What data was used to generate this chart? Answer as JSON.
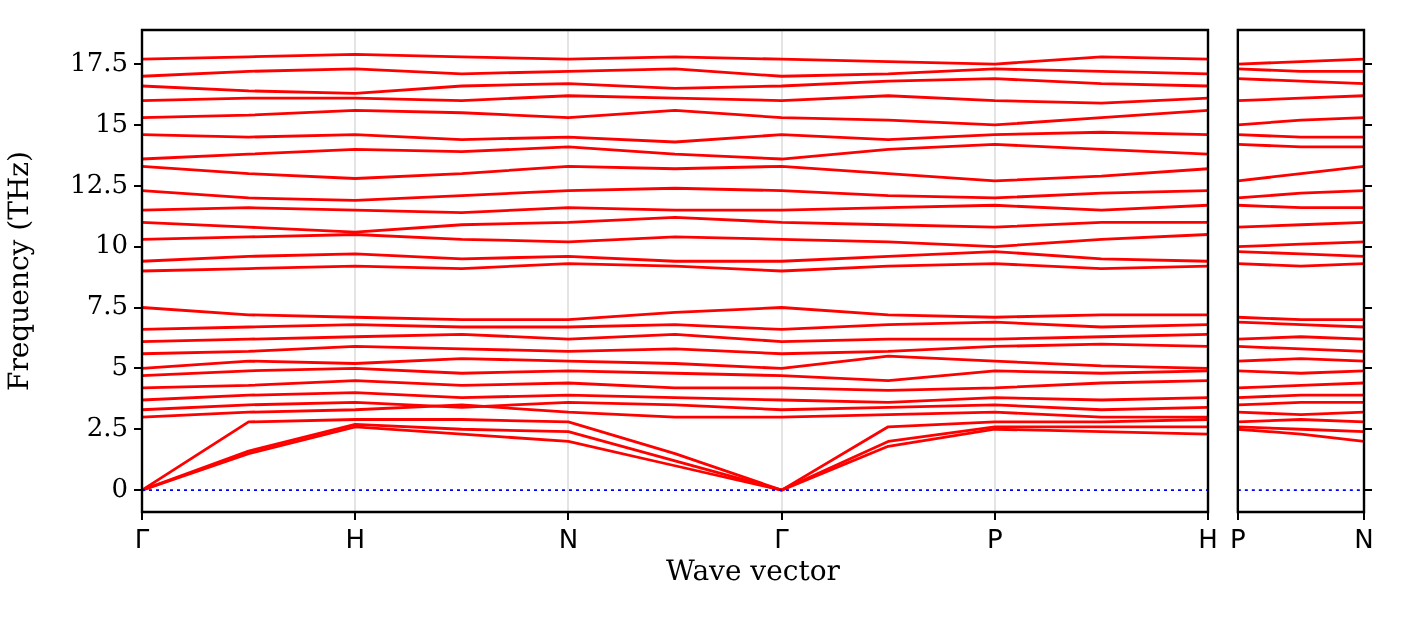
{
  "chart_data": [
    {
      "type": "line",
      "xlabel": "Wave vector",
      "ylabel": "Frequency (THz)",
      "grid": "x",
      "categories": [
        "Γ",
        null,
        "H",
        null,
        "N",
        null,
        "Γ",
        null,
        "P",
        null,
        "H"
      ],
      "ylim": [
        -0.9,
        18.9
      ],
      "yticks": [
        0,
        2.5,
        5,
        7.5,
        10,
        12.5,
        15,
        17.5
      ],
      "ref_lines": [
        {
          "axis": "y",
          "value": 0,
          "color": "#0000ff",
          "line_style": "dotted"
        }
      ],
      "series": [
        {
          "color": "#ff0000",
          "values": [
            0,
            1.5,
            2.6,
            2.3,
            2.0,
            1.0,
            0,
            1.8,
            2.5,
            2.4,
            2.3
          ]
        },
        {
          "color": "#ff0000",
          "values": [
            0,
            1.6,
            2.7,
            2.5,
            2.4,
            1.2,
            0,
            2.0,
            2.6,
            2.6,
            2.6
          ]
        },
        {
          "color": "#ff0000",
          "values": [
            0,
            2.8,
            2.9,
            2.9,
            2.8,
            1.5,
            0,
            2.6,
            2.8,
            2.8,
            2.9
          ]
        },
        {
          "color": "#ff0000",
          "values": [
            3.0,
            3.2,
            3.3,
            3.5,
            3.2,
            3.0,
            3.0,
            3.1,
            3.2,
            3.0,
            3.0
          ]
        },
        {
          "color": "#ff0000",
          "values": [
            3.3,
            3.5,
            3.6,
            3.4,
            3.6,
            3.5,
            3.3,
            3.4,
            3.5,
            3.3,
            3.4
          ]
        },
        {
          "color": "#ff0000",
          "values": [
            3.7,
            3.9,
            4.0,
            3.8,
            3.9,
            3.8,
            3.7,
            3.6,
            3.8,
            3.7,
            3.8
          ]
        },
        {
          "color": "#ff0000",
          "values": [
            4.2,
            4.3,
            4.5,
            4.3,
            4.4,
            4.2,
            4.2,
            4.1,
            4.2,
            4.4,
            4.5
          ]
        },
        {
          "color": "#ff0000",
          "values": [
            4.7,
            4.9,
            5.0,
            4.8,
            4.9,
            4.8,
            4.7,
            4.5,
            4.9,
            4.8,
            4.9
          ]
        },
        {
          "color": "#ff0000",
          "values": [
            5.0,
            5.3,
            5.2,
            5.4,
            5.3,
            5.2,
            5.0,
            5.5,
            5.3,
            5.1,
            5.0
          ]
        },
        {
          "color": "#ff0000",
          "values": [
            5.6,
            5.7,
            5.9,
            5.8,
            5.7,
            5.8,
            5.6,
            5.7,
            5.9,
            6.0,
            5.9
          ]
        },
        {
          "color": "#ff0000",
          "values": [
            6.1,
            6.2,
            6.3,
            6.4,
            6.2,
            6.4,
            6.1,
            6.2,
            6.2,
            6.3,
            6.4
          ]
        },
        {
          "color": "#ff0000",
          "values": [
            6.6,
            6.7,
            6.8,
            6.7,
            6.7,
            6.8,
            6.6,
            6.8,
            6.9,
            6.7,
            6.8
          ]
        },
        {
          "color": "#ff0000",
          "values": [
            7.5,
            7.2,
            7.1,
            7.0,
            7.0,
            7.3,
            7.5,
            7.2,
            7.1,
            7.2,
            7.2
          ]
        },
        {
          "color": "#ff0000",
          "values": [
            9.0,
            9.1,
            9.2,
            9.1,
            9.3,
            9.2,
            9.0,
            9.2,
            9.3,
            9.1,
            9.2
          ]
        },
        {
          "color": "#ff0000",
          "values": [
            9.4,
            9.6,
            9.7,
            9.5,
            9.6,
            9.4,
            9.4,
            9.6,
            9.8,
            9.5,
            9.4
          ]
        },
        {
          "color": "#ff0000",
          "values": [
            10.3,
            10.4,
            10.5,
            10.3,
            10.2,
            10.4,
            10.3,
            10.2,
            10.0,
            10.3,
            10.5
          ]
        },
        {
          "color": "#ff0000",
          "values": [
            11.0,
            10.8,
            10.6,
            10.9,
            11.0,
            11.2,
            11.0,
            10.9,
            10.8,
            11.0,
            11.0
          ]
        },
        {
          "color": "#ff0000",
          "values": [
            11.5,
            11.6,
            11.5,
            11.4,
            11.6,
            11.5,
            11.5,
            11.6,
            11.7,
            11.5,
            11.7
          ]
        },
        {
          "color": "#ff0000",
          "values": [
            12.3,
            12.0,
            11.9,
            12.1,
            12.3,
            12.4,
            12.3,
            12.1,
            12.0,
            12.2,
            12.3
          ]
        },
        {
          "color": "#ff0000",
          "values": [
            13.3,
            13.0,
            12.8,
            13.0,
            13.3,
            13.2,
            13.3,
            13.0,
            12.7,
            12.9,
            13.2
          ]
        },
        {
          "color": "#ff0000",
          "values": [
            13.6,
            13.8,
            14.0,
            13.9,
            14.1,
            13.8,
            13.6,
            14.0,
            14.2,
            14.0,
            13.8
          ]
        },
        {
          "color": "#ff0000",
          "values": [
            14.6,
            14.5,
            14.6,
            14.4,
            14.5,
            14.3,
            14.6,
            14.4,
            14.6,
            14.7,
            14.6
          ]
        },
        {
          "color": "#ff0000",
          "values": [
            15.3,
            15.4,
            15.6,
            15.5,
            15.3,
            15.6,
            15.3,
            15.2,
            15.0,
            15.3,
            15.6
          ]
        },
        {
          "color": "#ff0000",
          "values": [
            16.0,
            16.1,
            16.1,
            16.0,
            16.2,
            16.1,
            16.0,
            16.2,
            16.0,
            15.9,
            16.1
          ]
        },
        {
          "color": "#ff0000",
          "values": [
            16.6,
            16.4,
            16.3,
            16.6,
            16.7,
            16.5,
            16.6,
            16.8,
            16.9,
            16.7,
            16.6
          ]
        },
        {
          "color": "#ff0000",
          "values": [
            17.0,
            17.2,
            17.3,
            17.1,
            17.2,
            17.3,
            17.0,
            17.1,
            17.3,
            17.2,
            17.1
          ]
        },
        {
          "color": "#ff0000",
          "values": [
            17.7,
            17.8,
            17.9,
            17.8,
            17.7,
            17.8,
            17.7,
            17.6,
            17.5,
            17.8,
            17.7
          ]
        }
      ]
    },
    {
      "type": "line",
      "tick_labels": "x",
      "categories": [
        "P",
        null,
        "N"
      ],
      "ylim": [
        -0.9,
        18.9
      ],
      "yticks": [
        0,
        2.5,
        5,
        7.5,
        10,
        12.5,
        15,
        17.5
      ],
      "ref_lines": [
        {
          "axis": "y",
          "value": 0,
          "color": "#0000ff",
          "line_style": "dotted"
        }
      ],
      "series": [
        {
          "color": "#ff0000",
          "values": [
            2.5,
            2.3,
            2.0
          ]
        },
        {
          "color": "#ff0000",
          "values": [
            2.6,
            2.5,
            2.4
          ]
        },
        {
          "color": "#ff0000",
          "values": [
            2.8,
            2.9,
            2.8
          ]
        },
        {
          "color": "#ff0000",
          "values": [
            3.2,
            3.1,
            3.2
          ]
        },
        {
          "color": "#ff0000",
          "values": [
            3.5,
            3.6,
            3.6
          ]
        },
        {
          "color": "#ff0000",
          "values": [
            3.8,
            3.9,
            3.9
          ]
        },
        {
          "color": "#ff0000",
          "values": [
            4.2,
            4.3,
            4.4
          ]
        },
        {
          "color": "#ff0000",
          "values": [
            4.9,
            4.8,
            4.9
          ]
        },
        {
          "color": "#ff0000",
          "values": [
            5.3,
            5.4,
            5.3
          ]
        },
        {
          "color": "#ff0000",
          "values": [
            5.9,
            5.8,
            5.7
          ]
        },
        {
          "color": "#ff0000",
          "values": [
            6.2,
            6.3,
            6.2
          ]
        },
        {
          "color": "#ff0000",
          "values": [
            6.9,
            6.8,
            6.7
          ]
        },
        {
          "color": "#ff0000",
          "values": [
            7.1,
            7.0,
            7.0
          ]
        },
        {
          "color": "#ff0000",
          "values": [
            9.3,
            9.2,
            9.3
          ]
        },
        {
          "color": "#ff0000",
          "values": [
            9.8,
            9.7,
            9.6
          ]
        },
        {
          "color": "#ff0000",
          "values": [
            10.0,
            10.1,
            10.2
          ]
        },
        {
          "color": "#ff0000",
          "values": [
            10.8,
            10.9,
            11.0
          ]
        },
        {
          "color": "#ff0000",
          "values": [
            11.7,
            11.6,
            11.6
          ]
        },
        {
          "color": "#ff0000",
          "values": [
            12.0,
            12.2,
            12.3
          ]
        },
        {
          "color": "#ff0000",
          "values": [
            12.7,
            13.0,
            13.3
          ]
        },
        {
          "color": "#ff0000",
          "values": [
            14.2,
            14.1,
            14.1
          ]
        },
        {
          "color": "#ff0000",
          "values": [
            14.6,
            14.5,
            14.5
          ]
        },
        {
          "color": "#ff0000",
          "values": [
            15.0,
            15.2,
            15.3
          ]
        },
        {
          "color": "#ff0000",
          "values": [
            16.0,
            16.1,
            16.2
          ]
        },
        {
          "color": "#ff0000",
          "values": [
            16.9,
            16.8,
            16.7
          ]
        },
        {
          "color": "#ff0000",
          "values": [
            17.3,
            17.2,
            17.2
          ]
        },
        {
          "color": "#ff0000",
          "values": [
            17.5,
            17.6,
            17.7
          ]
        }
      ]
    }
  ]
}
